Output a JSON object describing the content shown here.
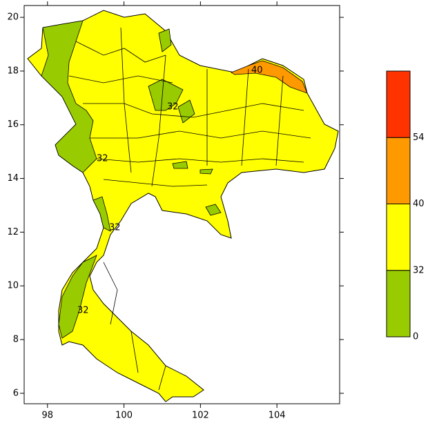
{
  "chart_data": {
    "type": "map",
    "xlim": [
      97.39,
      105.64
    ],
    "ylim": [
      5.61,
      20.44
    ],
    "xticks": [
      98,
      100,
      102,
      104
    ],
    "yticks": [
      6,
      8,
      10,
      12,
      14,
      16,
      18,
      20
    ],
    "annotations": [
      "32",
      "32",
      "32",
      "32",
      "40"
    ],
    "colorbar": {
      "levels": [
        0,
        32,
        40,
        54
      ],
      "colors": [
        "#99cc00",
        "#ffff00",
        "#ff9900",
        "#ff3300"
      ]
    }
  }
}
